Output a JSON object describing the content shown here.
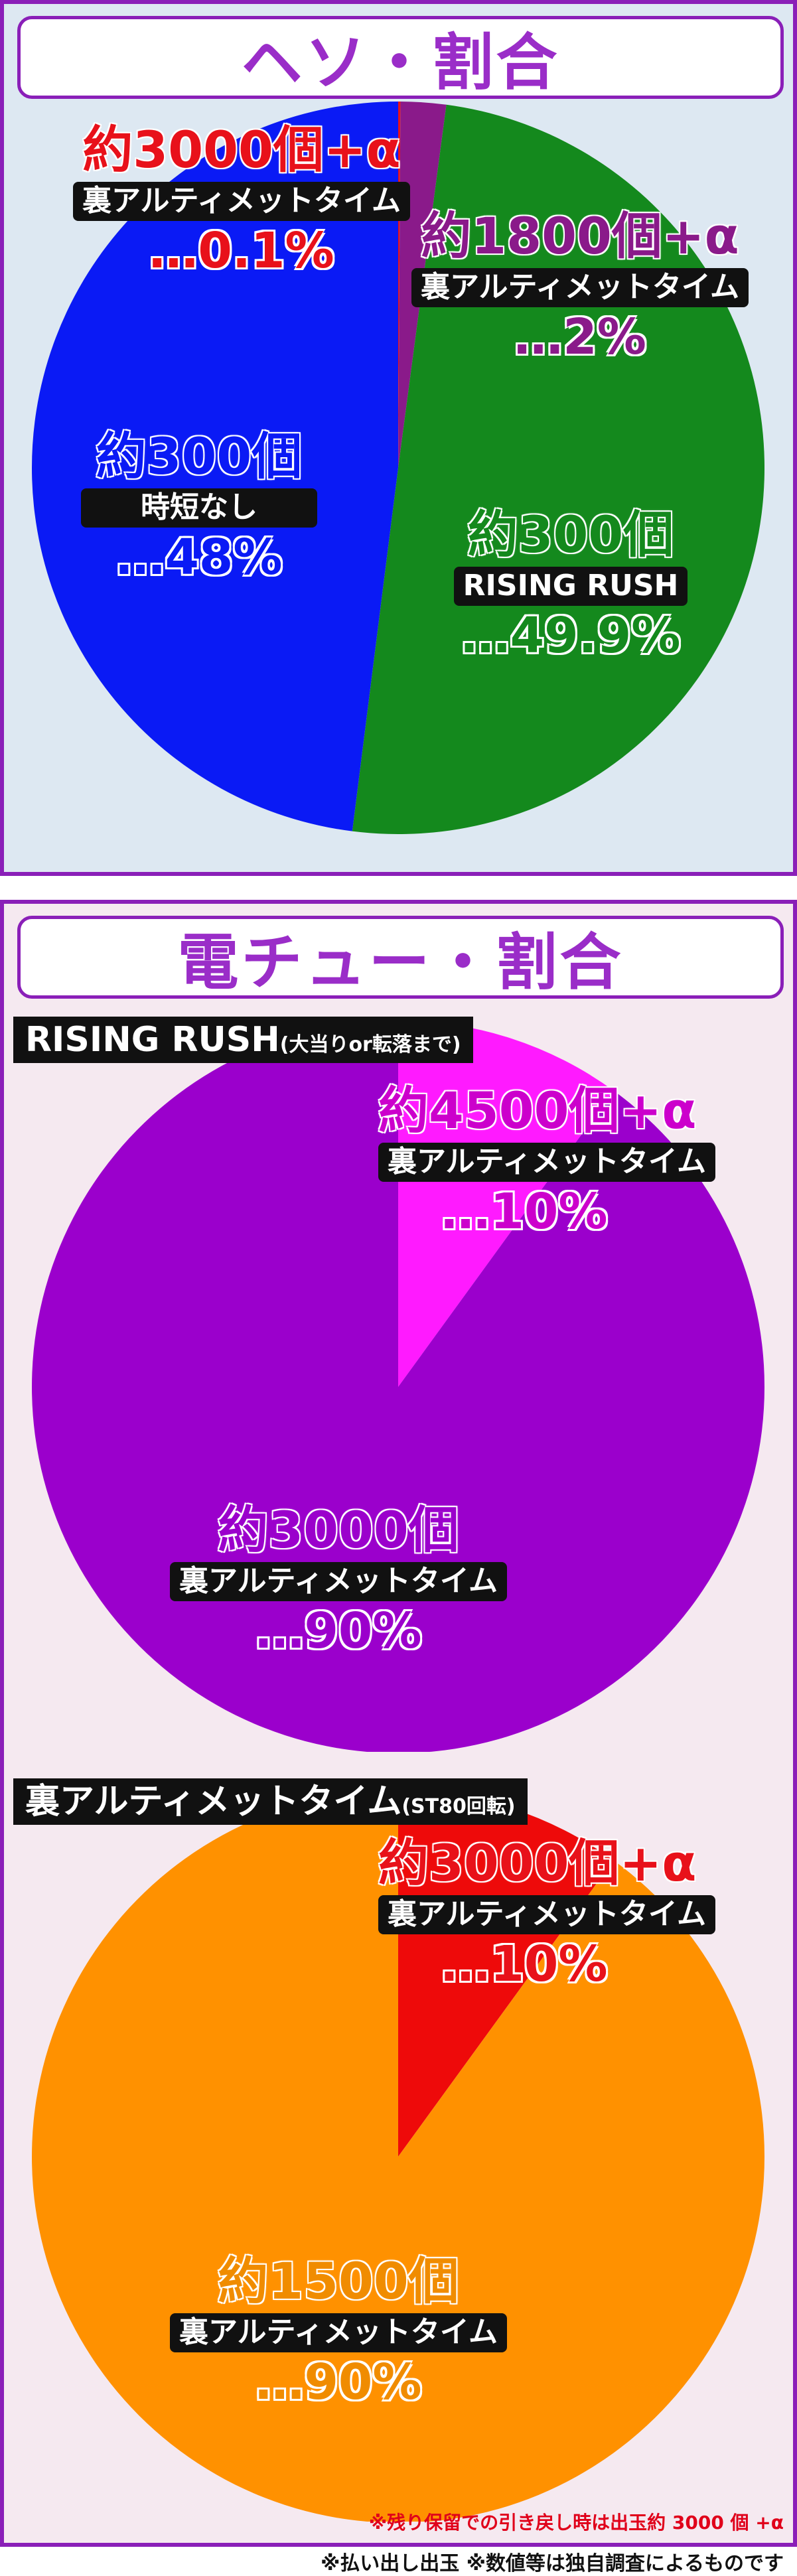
{
  "sections": {
    "heso": {
      "title": "ヘソ・割合",
      "labels": [
        {
          "count": "約3000個+α",
          "mode": "裏アルティメットタイム",
          "pct": "…0.1%"
        },
        {
          "count": "約1800個+α",
          "mode": "裏アルティメットタイム",
          "pct": "…2%"
        },
        {
          "count": "約300個",
          "mode": "時短なし",
          "pct": "…48%"
        },
        {
          "count": "約300個",
          "mode": "RISING RUSH",
          "pct": "…49.9%"
        }
      ]
    },
    "denchu": {
      "title": "電チュー・割合",
      "rush_header": {
        "main": "RISING RUSH",
        "sub": "(大当りor転落まで)"
      },
      "rush_labels": [
        {
          "count": "約4500個+α",
          "mode": "裏アルティメットタイム",
          "pct": "…10%"
        },
        {
          "count": "約3000個",
          "mode": "裏アルティメットタイム",
          "pct": "…90%"
        }
      ],
      "ura_header": {
        "main": "裏アルティメットタイム",
        "sub": "(ST80回転)"
      },
      "ura_labels": [
        {
          "count": "約3000個+α",
          "mode": "裏アルティメットタイム",
          "pct": "…10%"
        },
        {
          "count": "約1500個",
          "mode": "裏アルティメットタイム",
          "pct": "…90%"
        }
      ]
    }
  },
  "note": "※残り保留での引き戻し時は出玉約 3000 個 +α",
  "footer": "※払い出し出玉 ※数値等は独自調査によるものです",
  "chart_data": [
    {
      "type": "pie",
      "title": "ヘソ・割合",
      "categories": [
        "約3000個+α 裏アルティメットタイム",
        "約1800個+α 裏アルティメットタイム",
        "約300個 RISING RUSH",
        "約300個 時短なし"
      ],
      "values": [
        0.1,
        2,
        49.9,
        48
      ],
      "colors": [
        "#e8111a",
        "#8a1a8a",
        "#14891d",
        "#0a1af5"
      ]
    },
    {
      "type": "pie",
      "title": "RISING RUSH(大当りor転落まで)",
      "categories": [
        "約4500個+α 裏アルティメットタイム",
        "約3000個 裏アルティメットタイム"
      ],
      "values": [
        10,
        90
      ],
      "colors": [
        "#ff1aff",
        "#9b00cc"
      ]
    },
    {
      "type": "pie",
      "title": "裏アルティメットタイム(ST80回転)",
      "categories": [
        "約3000個+α 裏アルティメットタイム",
        "約1500個 裏アルティメットタイム"
      ],
      "values": [
        10,
        90
      ],
      "colors": [
        "#ee0a0a",
        "#ff9100"
      ]
    }
  ]
}
